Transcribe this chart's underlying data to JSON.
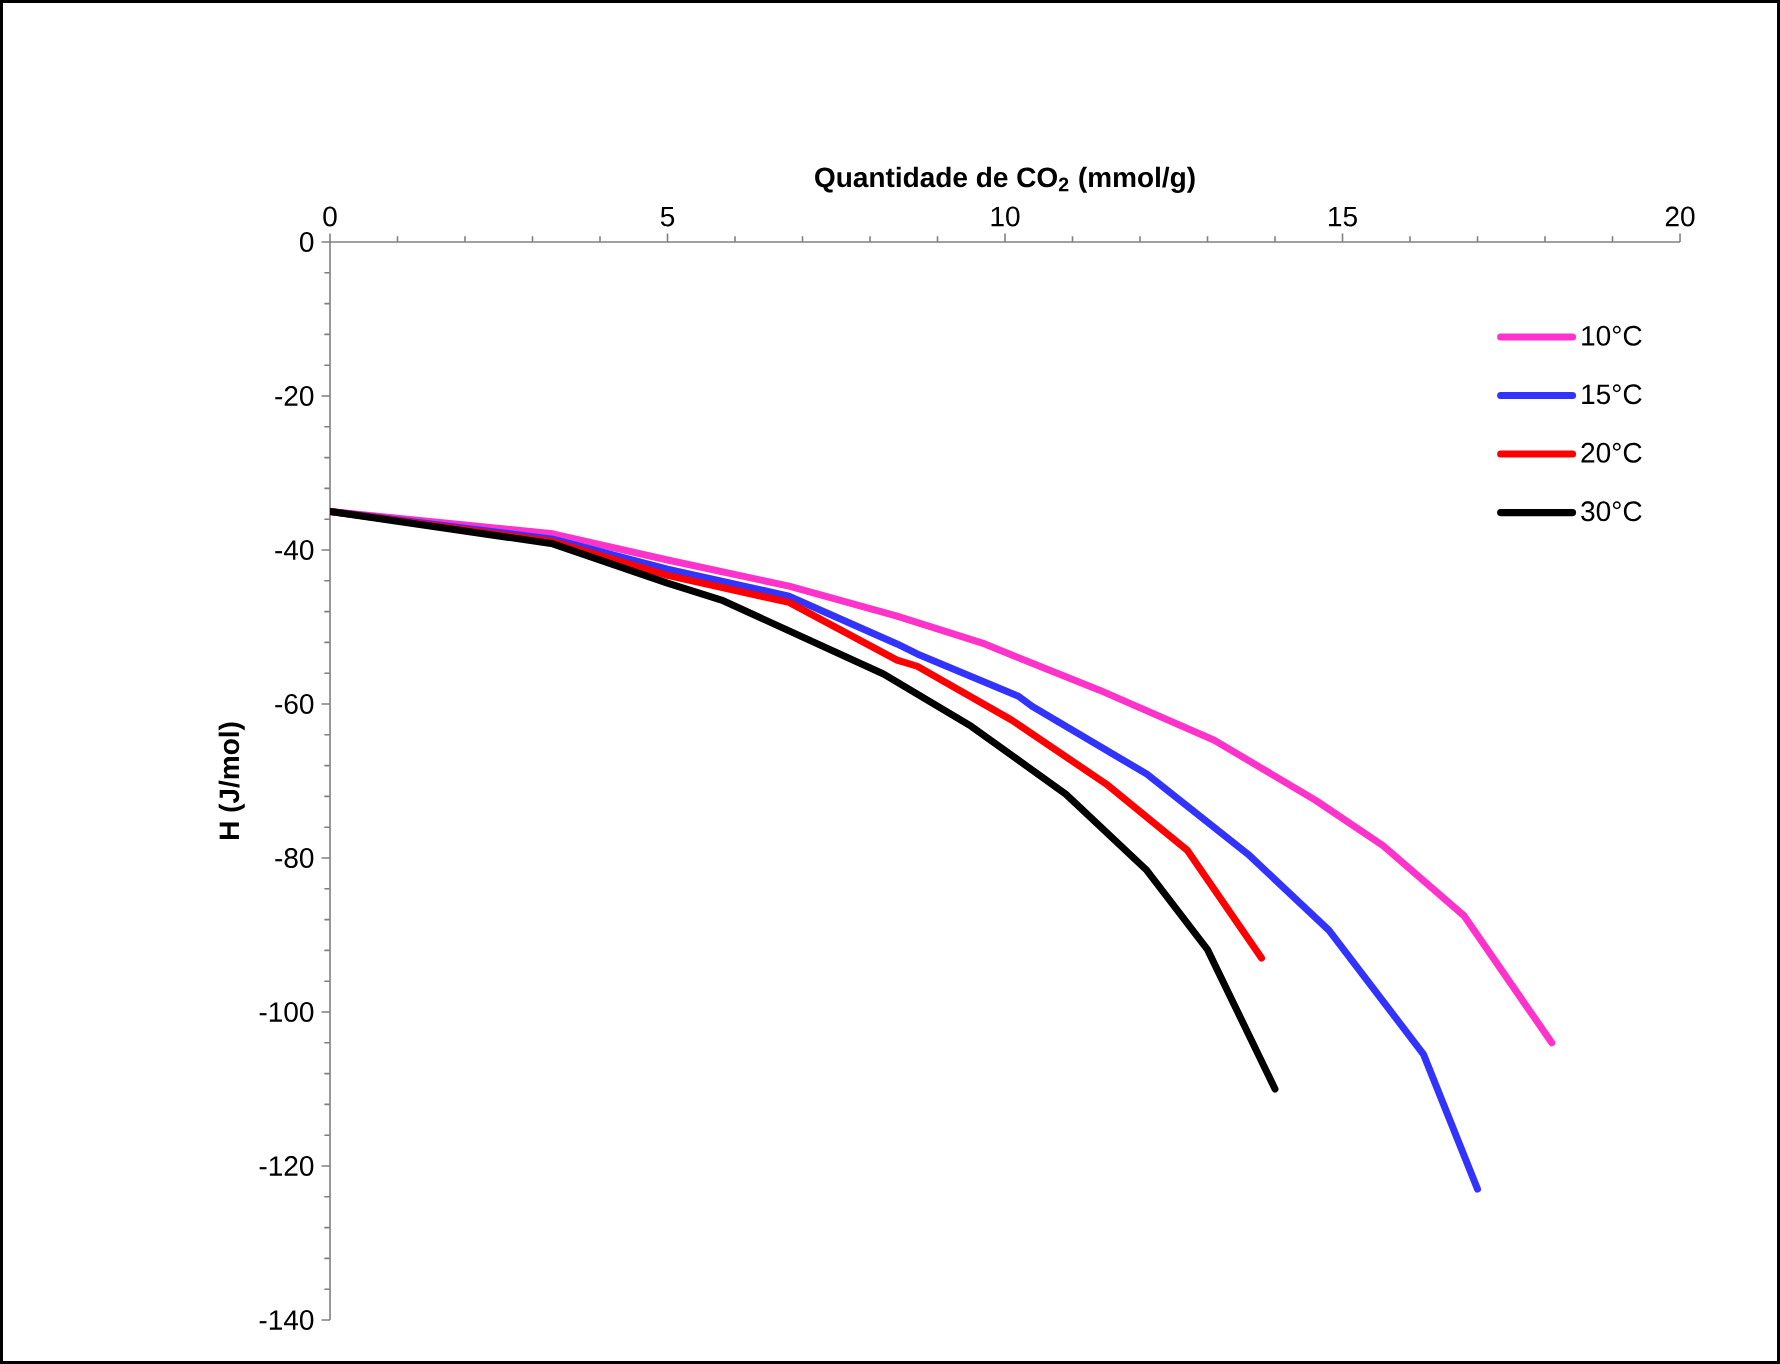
{
  "chart_data": {
    "type": "line",
    "xlabel": "Quantidade de CO$_{2}$ (mmol/g)",
    "ylabel": "H (J/mol)",
    "xlim": [
      0,
      20
    ],
    "ylim": [
      -140,
      0
    ],
    "xticks": [
      0,
      5,
      10,
      15,
      20
    ],
    "yticks": [
      -140,
      -120,
      -100,
      -80,
      -60,
      -40,
      -20,
      0
    ],
    "grid": false,
    "legend": "top right",
    "line_style": "solid",
    "marker": "none",
    "series": [
      {
        "name": "10°C",
        "color": "#ff33cc",
        "x": [
          0,
          3.3,
          5,
          6.8,
          8.4,
          9.7,
          10.2,
          11.4,
          13.1,
          14.6,
          15.6,
          16.8,
          18.1
        ],
        "values": [
          -35,
          -37.9,
          -41.3,
          -44.7,
          -48.6,
          -52.2,
          -54,
          -58.2,
          -64.7,
          -72.5,
          -78.4,
          -87.5,
          -104
        ]
      },
      {
        "name": "15°C",
        "color": "#3333ff",
        "x": [
          0,
          3.3,
          5,
          6.8,
          8.4,
          8.7,
          10.2,
          10.4,
          12.1,
          13.6,
          14.8,
          16.2,
          17
        ],
        "values": [
          -35,
          -38.6,
          -42.5,
          -46,
          -52.2,
          -53.5,
          -59,
          -60.3,
          -69.1,
          -79.5,
          -89.4,
          -105.5,
          -123
        ]
      },
      {
        "name": "20°C",
        "color": "#ff0000",
        "x": [
          0,
          3.3,
          5,
          6.8,
          8.4,
          8.7,
          10.1,
          11.5,
          12.7,
          13.8
        ],
        "values": [
          -35,
          -38.9,
          -43.3,
          -46.8,
          -54.3,
          -55.1,
          -62.1,
          -70.4,
          -79,
          -93
        ]
      },
      {
        "name": "30°C",
        "color": "#000000",
        "x": [
          0,
          3.3,
          5,
          5.8,
          8.2,
          9.5,
          10.9,
          12.1,
          13,
          14
        ],
        "values": [
          -35,
          -39.2,
          -44.3,
          -46.5,
          -56.1,
          -62.9,
          -71.7,
          -81.6,
          -91.9,
          -110
        ]
      }
    ]
  }
}
